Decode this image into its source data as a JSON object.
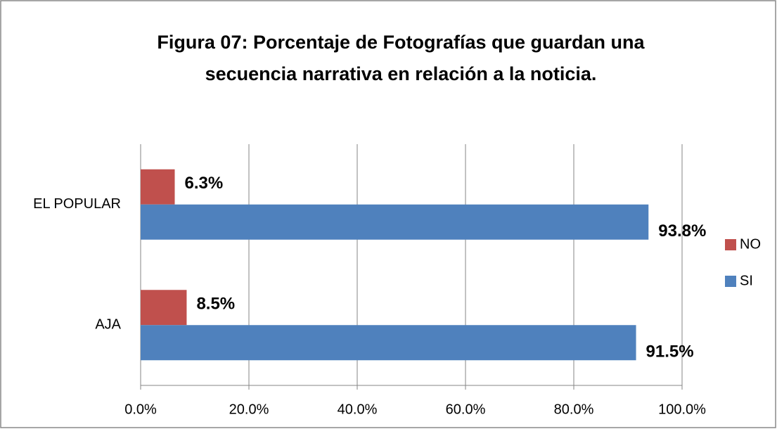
{
  "chart_data": {
    "type": "hbar",
    "title": "Figura 07: Porcentaje de Fotografías que guardan una secuencia narrativa en relación a la noticia.",
    "categories": [
      "AJA",
      "EL POPULAR"
    ],
    "series": [
      {
        "name": "NO",
        "color": "#c0504d",
        "values": [
          8.5,
          6.3
        ],
        "value_labels": [
          "8.5%",
          "6.3%"
        ]
      },
      {
        "name": "SI",
        "color": "#4f81bd",
        "values": [
          91.5,
          93.8
        ],
        "value_labels": [
          "91.5%",
          "93.8%"
        ]
      }
    ],
    "xlim": [
      0,
      100
    ],
    "xticks": [
      {
        "value": 0,
        "label": "0.0%"
      },
      {
        "value": 20,
        "label": "20.0%"
      },
      {
        "value": 40,
        "label": "40.0%"
      },
      {
        "value": 60,
        "label": "60.0%"
      },
      {
        "value": 80,
        "label": "80.0%"
      },
      {
        "value": 100,
        "label": "100.0%"
      }
    ],
    "grid": true,
    "legend": "right"
  }
}
